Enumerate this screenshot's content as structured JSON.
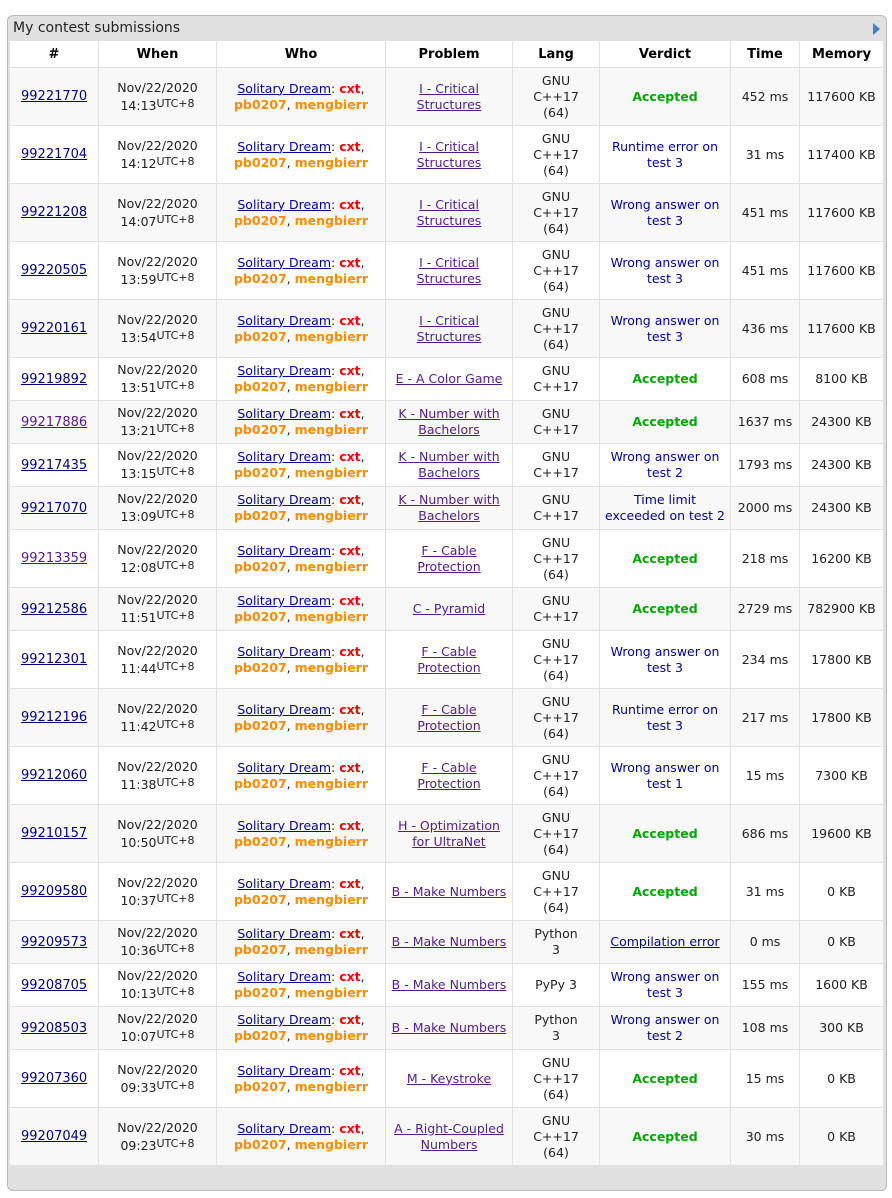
{
  "panel": {
    "title": "My contest submissions",
    "columns": [
      "#",
      "When",
      "Who",
      "Problem",
      "Lang",
      "Verdict",
      "Time",
      "Memory"
    ]
  },
  "team": {
    "name": "Solitary Dream",
    "members": [
      "cxt",
      "pb0207",
      "mengbierr"
    ]
  },
  "rows": [
    {
      "id": "99221770",
      "date": "Nov/22/2020",
      "time": "14:13",
      "tz": "UTC+8",
      "problem": "I - Critical Structures",
      "lang": "GNU C++17 (64)",
      "verdict": "Accepted",
      "vtype": "ok",
      "runtime": "452 ms",
      "memory": "117600 KB"
    },
    {
      "id": "99221704",
      "date": "Nov/22/2020",
      "time": "14:12",
      "tz": "UTC+8",
      "problem": "I - Critical Structures",
      "lang": "GNU C++17 (64)",
      "verdict": "Runtime error on test 3",
      "vtype": "bad",
      "runtime": "31 ms",
      "memory": "117400 KB"
    },
    {
      "id": "99221208",
      "date": "Nov/22/2020",
      "time": "14:07",
      "tz": "UTC+8",
      "problem": "I - Critical Structures",
      "lang": "GNU C++17 (64)",
      "verdict": "Wrong answer on test 3",
      "vtype": "bad",
      "runtime": "451 ms",
      "memory": "117600 KB"
    },
    {
      "id": "99220505",
      "date": "Nov/22/2020",
      "time": "13:59",
      "tz": "UTC+8",
      "problem": "I - Critical Structures",
      "lang": "GNU C++17 (64)",
      "verdict": "Wrong answer on test 3",
      "vtype": "bad",
      "runtime": "451 ms",
      "memory": "117600 KB"
    },
    {
      "id": "99220161",
      "date": "Nov/22/2020",
      "time": "13:54",
      "tz": "UTC+8",
      "problem": "I - Critical Structures",
      "lang": "GNU C++17 (64)",
      "verdict": "Wrong answer on test 3",
      "vtype": "bad",
      "runtime": "436 ms",
      "memory": "117600 KB"
    },
    {
      "id": "99219892",
      "date": "Nov/22/2020",
      "time": "13:51",
      "tz": "UTC+8",
      "problem": "E - A Color Game",
      "lang": "GNU C++17",
      "verdict": "Accepted",
      "vtype": "ok",
      "runtime": "608 ms",
      "memory": "8100 KB"
    },
    {
      "id": "99217886",
      "date": "Nov/22/2020",
      "time": "13:21",
      "tz": "UTC+8",
      "problem": "K - Number with Bachelors",
      "lang": "GNU C++17",
      "verdict": "Accepted",
      "vtype": "ok",
      "runtime": "1637 ms",
      "memory": "24300 KB",
      "visited": true
    },
    {
      "id": "99217435",
      "date": "Nov/22/2020",
      "time": "13:15",
      "tz": "UTC+8",
      "problem": "K - Number with Bachelors",
      "lang": "GNU C++17",
      "verdict": "Wrong answer on test 2",
      "vtype": "bad",
      "runtime": "1793 ms",
      "memory": "24300 KB"
    },
    {
      "id": "99217070",
      "date": "Nov/22/2020",
      "time": "13:09",
      "tz": "UTC+8",
      "problem": "K - Number with Bachelors",
      "lang": "GNU C++17",
      "verdict": "Time limit exceeded on test 2",
      "vtype": "bad",
      "runtime": "2000 ms",
      "memory": "24300 KB"
    },
    {
      "id": "99213359",
      "date": "Nov/22/2020",
      "time": "12:08",
      "tz": "UTC+8",
      "problem": "F - Cable Protection",
      "lang": "GNU C++17 (64)",
      "verdict": "Accepted",
      "vtype": "ok",
      "runtime": "218 ms",
      "memory": "16200 KB",
      "visited": true
    },
    {
      "id": "99212586",
      "date": "Nov/22/2020",
      "time": "11:51",
      "tz": "UTC+8",
      "problem": "C - Pyramid",
      "lang": "GNU C++17",
      "verdict": "Accepted",
      "vtype": "ok",
      "runtime": "2729 ms",
      "memory": "782900 KB"
    },
    {
      "id": "99212301",
      "date": "Nov/22/2020",
      "time": "11:44",
      "tz": "UTC+8",
      "problem": "F - Cable Protection",
      "lang": "GNU C++17 (64)",
      "verdict": "Wrong answer on test 3",
      "vtype": "bad",
      "runtime": "234 ms",
      "memory": "17800 KB"
    },
    {
      "id": "99212196",
      "date": "Nov/22/2020",
      "time": "11:42",
      "tz": "UTC+8",
      "problem": "F - Cable Protection",
      "lang": "GNU C++17 (64)",
      "verdict": "Runtime error on test 3",
      "vtype": "bad",
      "runtime": "217 ms",
      "memory": "17800 KB"
    },
    {
      "id": "99212060",
      "date": "Nov/22/2020",
      "time": "11:38",
      "tz": "UTC+8",
      "problem": "F - Cable Protection",
      "lang": "GNU C++17 (64)",
      "verdict": "Wrong answer on test 1",
      "vtype": "bad",
      "runtime": "15 ms",
      "memory": "7300 KB"
    },
    {
      "id": "99210157",
      "date": "Nov/22/2020",
      "time": "10:50",
      "tz": "UTC+8",
      "problem": "H - Optimization for UltraNet",
      "lang": "GNU C++17 (64)",
      "verdict": "Accepted",
      "vtype": "ok",
      "runtime": "686 ms",
      "memory": "19600 KB"
    },
    {
      "id": "99209580",
      "date": "Nov/22/2020",
      "time": "10:37",
      "tz": "UTC+8",
      "problem": "B - Make Numbers",
      "lang": "GNU C++17 (64)",
      "verdict": "Accepted",
      "vtype": "ok",
      "runtime": "31 ms",
      "memory": "0 KB"
    },
    {
      "id": "99209573",
      "date": "Nov/22/2020",
      "time": "10:36",
      "tz": "UTC+8",
      "problem": "B - Make Numbers",
      "lang": "Python 3",
      "verdict": "Compilation error",
      "vtype": "cerr",
      "runtime": "0 ms",
      "memory": "0 KB"
    },
    {
      "id": "99208705",
      "date": "Nov/22/2020",
      "time": "10:13",
      "tz": "UTC+8",
      "problem": "B - Make Numbers",
      "lang": "PyPy 3",
      "verdict": "Wrong answer on test 3",
      "vtype": "bad",
      "runtime": "155 ms",
      "memory": "1600 KB"
    },
    {
      "id": "99208503",
      "date": "Nov/22/2020",
      "time": "10:07",
      "tz": "UTC+8",
      "problem": "B - Make Numbers",
      "lang": "Python 3",
      "verdict": "Wrong answer on test 2",
      "vtype": "bad",
      "runtime": "108 ms",
      "memory": "300 KB"
    },
    {
      "id": "99207360",
      "date": "Nov/22/2020",
      "time": "09:33",
      "tz": "UTC+8",
      "problem": "M - Keystroke",
      "lang": "GNU C++17 (64)",
      "verdict": "Accepted",
      "vtype": "ok",
      "runtime": "15 ms",
      "memory": "0 KB"
    },
    {
      "id": "99207049",
      "date": "Nov/22/2020",
      "time": "09:23",
      "tz": "UTC+8",
      "problem": "A - Right-Coupled Numbers",
      "lang": "GNU C++17 (64)",
      "verdict": "Accepted",
      "vtype": "ok",
      "runtime": "30 ms",
      "memory": "0 KB"
    }
  ]
}
